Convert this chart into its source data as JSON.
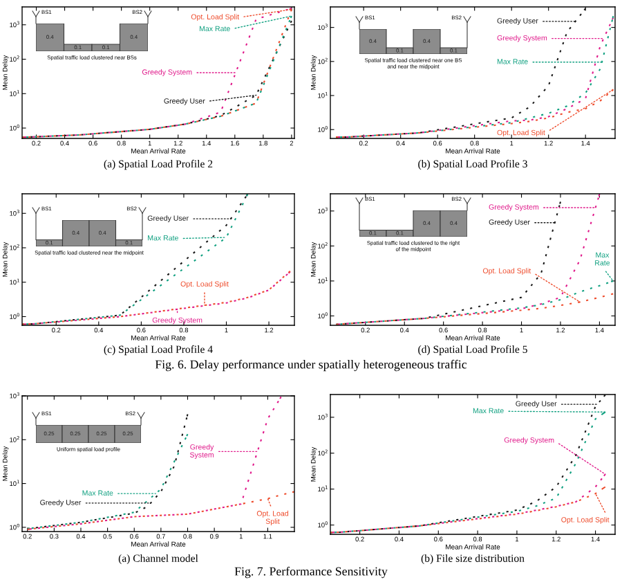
{
  "chart_data": [
    {
      "type": "line",
      "title": "(a) Spatial Load Profile 2",
      "xlabel": "Mean Arrival Rate",
      "ylabel": "Mean Delay",
      "log": "y",
      "line_style": "dotted",
      "xlim": [
        0.1,
        2.02
      ],
      "xticks": [
        0.2,
        0.4,
        0.6,
        0.8,
        1,
        1.2,
        1.4,
        1.6,
        1.8,
        2
      ],
      "ylim": [
        0.5,
        3300
      ],
      "yticks": [
        {
          "value": 1,
          "label": "10$^{0}$"
        },
        {
          "value": 10,
          "label": "10$^{1}$"
        },
        {
          "value": 100,
          "label": "10$^{2}$"
        },
        {
          "value": 1000,
          "label": "10$^{3}$"
        }
      ],
      "x": [
        0.1,
        0.5,
        1,
        1.25,
        1.5,
        1.75,
        2
      ],
      "series": [
        {
          "name": "Greedy User",
          "color": "#1a1a1a",
          "values": [
            0.54,
            0.63,
            0.92,
            1.3,
            2.3,
            9,
            1300
          ]
        },
        {
          "name": "Greedy System",
          "color": "#e0198a",
          "values": [
            0.54,
            0.63,
            0.92,
            1.3,
            2.9,
            1450,
            3000
          ]
        },
        {
          "name": "Max Rate",
          "color": "#10a080",
          "values": [
            0.54,
            0.63,
            0.92,
            1.3,
            2.2,
            5.3,
            1800
          ]
        },
        {
          "name": "Opt. Load Split",
          "color": "#ee4b2b",
          "values": [
            0.54,
            0.63,
            0.92,
            1.3,
            2.2,
            5.3,
            2800
          ]
        }
      ]
    },
    {
      "type": "bar",
      "categories": [
        null,
        null,
        null,
        null
      ],
      "values": [
        0.4,
        0.1,
        0.1,
        0.4
      ],
      "color": "#8c8c8c",
      "data_labels": true,
      "annotations": [
        "BS1",
        "BS2",
        "Spatial traffic load clustered near BSs"
      ]
    },
    {
      "type": "line",
      "title": "(b) Spatial Load Profile 3",
      "xlabel": "Mean Arrival Rate",
      "ylabel": "Mean Delay",
      "log": "y",
      "line_style": "dotted",
      "xlim": [
        0.02,
        1.56
      ],
      "xticks": [
        0.2,
        0.4,
        0.6,
        0.8,
        1,
        1.2,
        1.4
      ],
      "ylim": [
        0.55,
        4000
      ],
      "yticks": [
        {
          "value": 1,
          "label": "10$^{0}$"
        },
        {
          "value": 10,
          "label": "10$^{1}$"
        },
        {
          "value": 100,
          "label": "10$^{2}$"
        },
        {
          "value": 1000,
          "label": "10$^{3}$"
        }
      ],
      "x": [
        0.05,
        0.1,
        0.5,
        1,
        1.1,
        1.2,
        1.3,
        1.4,
        1.48,
        1.55
      ],
      "series": [
        {
          "name": "Greedy User",
          "color": "#1a1a1a",
          "x": [
            0.05,
            0.1,
            0.5,
            1,
            1.1,
            1.2,
            1.3,
            1.4
          ],
          "values": [
            0.6,
            0.6,
            0.8,
            2.2,
            4.7,
            19.5,
            730,
            3600
          ]
        },
        {
          "name": "Greedy System",
          "color": "#e0198a",
          "values": [
            0.6,
            0.6,
            0.8,
            1.8,
            1.9,
            2.4,
            4.1,
            8.1,
            290,
            1950
          ]
        },
        {
          "name": "Max Rate",
          "color": "#10a080",
          "values": [
            0.6,
            0.6,
            0.8,
            1.6,
            2.2,
            3,
            4.9,
            11.8,
            61,
            2150
          ]
        },
        {
          "name": "Opt. Load Split",
          "color": "#ee4b2b",
          "values": [
            0.6,
            0.6,
            0.8,
            1.5,
            1.75,
            2.2,
            3.2,
            4.1,
            7,
            15
          ]
        }
      ]
    },
    {
      "type": "bar",
      "categories": [
        null,
        null,
        null,
        null
      ],
      "values": [
        0.4,
        0.1,
        0.4,
        0.1
      ],
      "color": "#8c8c8c",
      "data_labels": true,
      "annotations": [
        "BS1",
        "BS2",
        "Spatial traffic load clustered near one BS",
        "and near the midpoint"
      ]
    },
    {
      "type": "line",
      "title": "(c) Spatial Load Profile 4",
      "xlabel": "Mean Arrival Rate",
      "ylabel": "Mean Delay",
      "log": "y",
      "line_style": "dotted",
      "xlim": [
        0.04,
        1.32
      ],
      "xticks": [
        0.2,
        0.4,
        0.6,
        0.8,
        1,
        1.2
      ],
      "ylim": [
        0.56,
        3700
      ],
      "yticks": [
        {
          "value": 1,
          "label": "10$^{0}$"
        },
        {
          "value": 10,
          "label": "10$^{1}$"
        },
        {
          "value": 100,
          "label": "10$^{2}$"
        },
        {
          "value": 1000,
          "label": "10$^{3}$"
        }
      ],
      "x": [
        0.04,
        0.1,
        0.5,
        1,
        1.1,
        1.2,
        1.3
      ],
      "annotations": [
        "Fig. 6. Delay performance under spatially heterogeneous traffic"
      ],
      "series": [
        {
          "name": "Greedy User",
          "color": "#1a1a1a",
          "x": [
            0.04,
            0.1,
            0.5,
            1,
            1.1
          ],
          "values": [
            0.6,
            0.62,
            1.1,
            450,
            3600
          ]
        },
        {
          "name": "Greedy System",
          "color": "#e0198a",
          "values": [
            0.6,
            0.62,
            1,
            2.5,
            3.5,
            5.9,
            20
          ]
        },
        {
          "name": "Max Rate",
          "color": "#10a080",
          "x": [
            0.04,
            0.1,
            0.5,
            1,
            1.1
          ],
          "values": [
            0.6,
            0.62,
            1.1,
            200,
            3600
          ]
        },
        {
          "name": "Opt. Load Split",
          "color": "#ee4b2b",
          "values": [
            0.6,
            0.62,
            1,
            2.6,
            3.6,
            6,
            21
          ]
        }
      ]
    },
    {
      "type": "bar",
      "categories": [
        null,
        null,
        null,
        null
      ],
      "values": [
        0.1,
        0.4,
        0.4,
        0.1
      ],
      "color": "#8c8c8c",
      "data_labels": true,
      "annotations": [
        "BS1",
        "BS2",
        "Spatial traffic load clustered near the midpoint"
      ]
    },
    {
      "type": "line",
      "title": "(d) Spatial Load Profile 5",
      "xlabel": "Mean Arrival Rate",
      "ylabel": "Mean Delay",
      "log": "y",
      "line_style": "dotted",
      "xlim": [
        0.02,
        1.48
      ],
      "xticks": [
        0.2,
        0.4,
        0.6,
        0.8,
        1,
        1.2,
        1.4
      ],
      "ylim": [
        0.54,
        3100
      ],
      "yticks": [
        {
          "value": 1,
          "label": "10$^{0}$"
        },
        {
          "value": 10,
          "label": "10$^{1}$"
        },
        {
          "value": 100,
          "label": "10$^{2}$"
        },
        {
          "value": 1000,
          "label": "10$^{3}$"
        }
      ],
      "x": [
        0.05,
        0.1,
        0.5,
        1,
        1.1,
        1.2,
        1.3,
        1.4,
        1.47
      ],
      "series": [
        {
          "name": "Greedy User",
          "color": "#1a1a1a",
          "x": [
            0.05,
            0.1,
            0.5,
            1,
            1.1,
            1.2
          ],
          "values": [
            0.57,
            0.6,
            0.85,
            3.4,
            16,
            1830
          ]
        },
        {
          "name": "Greedy System",
          "color": "#e0198a",
          "x": [
            0.05,
            0.1,
            0.5,
            1,
            1.1,
            1.2,
            1.3,
            1.4
          ],
          "values": [
            0.57,
            0.6,
            0.85,
            1.6,
            2.2,
            3.4,
            40,
            3000
          ]
        },
        {
          "name": "Max Rate",
          "color": "#10a080",
          "values": [
            0.57,
            0.6,
            0.85,
            1.7,
            2.1,
            2.9,
            4.9,
            7.3,
            10
          ]
        },
        {
          "name": "Opt. Load Split",
          "color": "#ee4b2b",
          "values": [
            0.57,
            0.6,
            0.85,
            1.45,
            1.65,
            2,
            2.5,
            3.4,
            4.3
          ]
        }
      ]
    },
    {
      "type": "bar",
      "categories": [
        null,
        null,
        null,
        null
      ],
      "values": [
        0.1,
        0.1,
        0.4,
        0.4
      ],
      "color": "#8c8c8c",
      "data_labels": true,
      "annotations": [
        "BS1",
        "BS2",
        "Spatial traffic load clustered to the right",
        "of the midpoint"
      ]
    },
    {
      "type": "line",
      "title": "(a) Channel model",
      "xlabel": "Mean Arrival Rate",
      "ylabel": "Mean Delay",
      "log": "y",
      "line_style": "dotted",
      "xlim": [
        0.18,
        1.2
      ],
      "xticks": [
        0.2,
        0.3,
        0.4,
        0.5,
        0.6,
        0.7,
        0.8,
        0.9,
        1,
        1.1
      ],
      "ylim": [
        0.8,
        1000
      ],
      "yticks": [
        {
          "value": 1,
          "label": "10$^{0}$"
        },
        {
          "value": 10,
          "label": "10$^{1}$"
        },
        {
          "value": 100,
          "label": "10$^{2}$"
        },
        {
          "value": 1000,
          "label": "10$^{3}$"
        }
      ],
      "annotations": [
        "Fig. 7. Performance Sensitivity"
      ],
      "series": [
        {
          "name": "Greedy User",
          "color": "#1a1a1a",
          "x": [
            0.2,
            0.4,
            0.6,
            0.65,
            0.7,
            0.75,
            0.8
          ],
          "values": [
            0.93,
            1.3,
            2.1,
            3,
            6.5,
            25,
            380
          ]
        },
        {
          "name": "Greedy System",
          "color": "#e0198a",
          "x": [
            0.2,
            0.4,
            0.6,
            0.8,
            1,
            1.1,
            1.15
          ],
          "values": [
            0.9,
            1.2,
            1.75,
            2,
            3.4,
            300,
            950
          ]
        },
        {
          "name": "Max Rate",
          "color": "#10a080",
          "x": [
            0.2,
            0.4,
            0.6,
            0.7,
            0.8
          ],
          "values": [
            0.93,
            1.3,
            2.2,
            7.5,
            134
          ]
        },
        {
          "name": "Opt. Load Split",
          "color": "#ee4b2b",
          "x": [
            0.2,
            0.4,
            0.6,
            0.8,
            1,
            1.1,
            1.15,
            1.2
          ],
          "values": [
            0.9,
            1.2,
            1.75,
            2,
            3.4,
            4.5,
            5.5,
            6.5
          ]
        }
      ]
    },
    {
      "type": "bar",
      "categories": [
        null,
        null,
        null,
        null
      ],
      "values": [
        0.25,
        0.25,
        0.25,
        0.25
      ],
      "color": "#8c8c8c",
      "data_labels": true,
      "annotations": [
        "BS1",
        "BS2",
        "Uniform spatial load profile"
      ]
    },
    {
      "type": "line",
      "title": "(b) File size distribution",
      "xlabel": "Mean Arrival Rate",
      "ylabel": "Mean Delay",
      "log": "y",
      "line_style": "dotted",
      "xlim": [
        0.05,
        1.5
      ],
      "xticks": [
        0.2,
        0.4,
        0.6,
        0.8,
        1,
        1.2,
        1.4
      ],
      "ylim": [
        0.55,
        4300
      ],
      "yticks": [
        {
          "value": 1,
          "label": "10$^{0}$"
        },
        {
          "value": 10,
          "label": "10$^{1}$"
        },
        {
          "value": 100,
          "label": "10$^{2}$"
        },
        {
          "value": 1000,
          "label": "10$^{3}$"
        }
      ],
      "x": [
        0.05,
        0.1,
        0.5,
        1,
        1.1,
        1.2,
        1.3,
        1.4,
        1.45
      ],
      "series": [
        {
          "name": "Greedy User",
          "color": "#1a1a1a",
          "values": [
            0.62,
            0.63,
            0.94,
            2.6,
            4.6,
            11.5,
            87,
            2000,
            4200
          ]
        },
        {
          "name": "Greedy System",
          "color": "#e0198a",
          "values": [
            0.62,
            0.63,
            0.94,
            2.05,
            2.6,
            3.3,
            4.4,
            11.5,
            26
          ]
        },
        {
          "name": "Max Rate",
          "color": "#10a080",
          "values": [
            0.62,
            0.63,
            0.94,
            2.4,
            3.4,
            5.6,
            52,
            900,
            1400
          ]
        },
        {
          "name": "Opt. Load Split",
          "color": "#ee4b2b",
          "values": [
            0.62,
            0.63,
            0.94,
            2,
            2.5,
            3.2,
            4.4,
            7.5,
            11.5
          ]
        }
      ]
    }
  ]
}
